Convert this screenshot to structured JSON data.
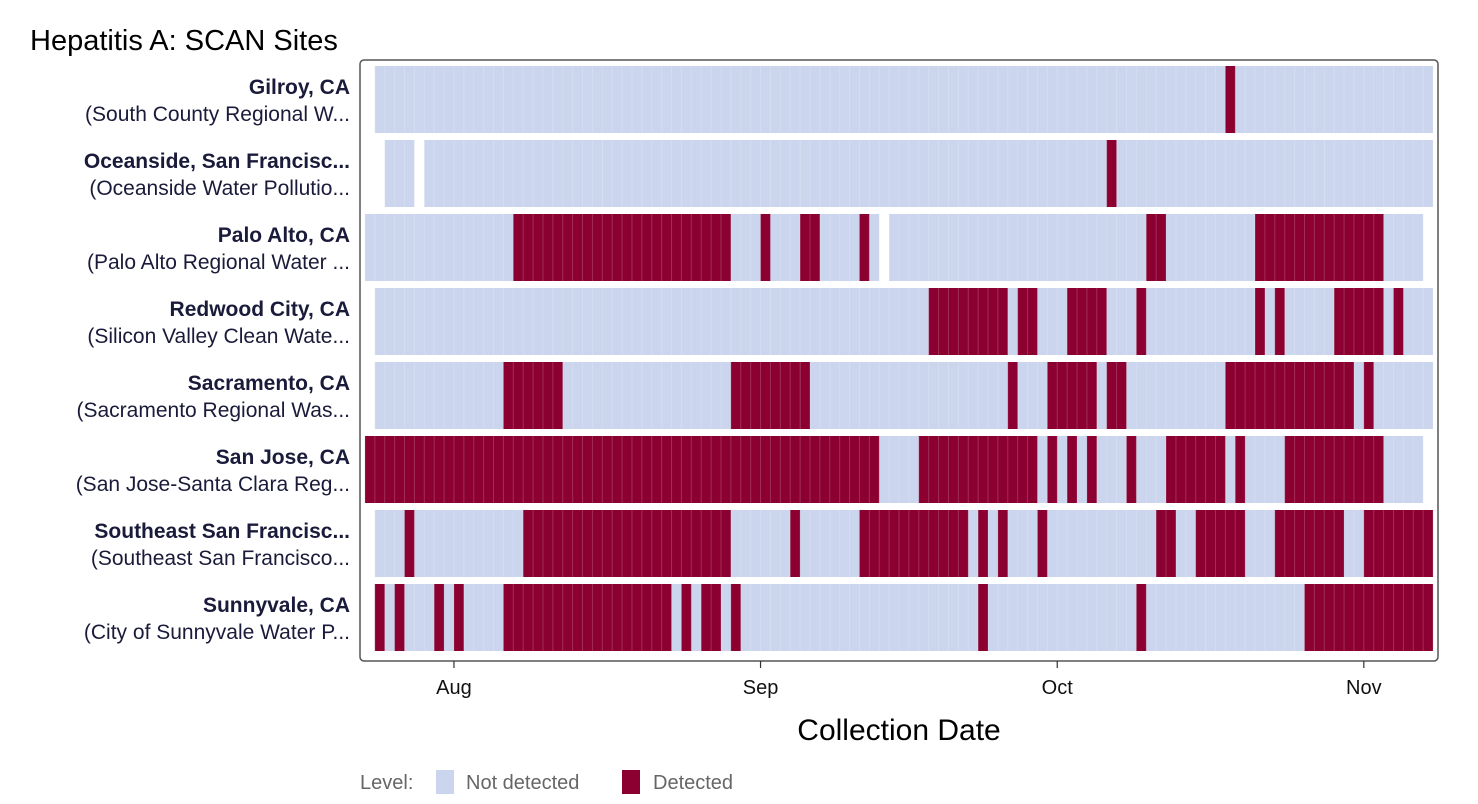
{
  "chart_data": {
    "type": "heatmap",
    "title": "Hepatitis A: SCAN Sites",
    "xlabel": "Collection Date",
    "ylabel": "",
    "x_range": [
      "2024-07-23",
      "2024-11-05"
    ],
    "x_ticks": [
      {
        "date": "2024-08-01",
        "label": "Aug"
      },
      {
        "date": "2024-09-01",
        "label": "Sep"
      },
      {
        "date": "2024-10-01",
        "label": "Oct"
      },
      {
        "date": "2024-11-01",
        "label": "Nov"
      }
    ],
    "levels": [
      "Not detected",
      "Detected"
    ],
    "colors": {
      "Not detected": "#cbd5ee",
      "Detected": "#8b0030",
      "frame": "#555555"
    },
    "legend": {
      "title": "Level:",
      "placement": "bottom"
    },
    "sites": [
      {
        "name": "Gilroy, CA",
        "plant": "(South County Regional W...",
        "sampled": [
          [
            "2024-07-24",
            "2024-11-07"
          ]
        ],
        "detected": [
          "2024-10-18"
        ]
      },
      {
        "name": "Oceanside, San Francisc...",
        "plant": "(Oceanside Water Pollutio...",
        "sampled": [
          [
            "2024-07-25",
            "2024-07-27"
          ],
          [
            "2024-07-29",
            "2024-08-15"
          ],
          [
            "2024-08-16",
            "2024-09-04"
          ],
          [
            "2024-09-05",
            "2024-10-27"
          ],
          [
            "2024-10-28",
            "2024-11-07"
          ]
        ],
        "detected": [
          "2024-10-06"
        ]
      },
      {
        "name": "Palo Alto, CA",
        "plant": "(Palo Alto Regional Water ...",
        "sampled": [
          [
            "2024-07-23",
            "2024-09-12"
          ],
          [
            "2024-09-14",
            "2024-11-06"
          ]
        ],
        "detected": [
          [
            "2024-08-07",
            "2024-08-27"
          ],
          "2024-08-28",
          "2024-09-01",
          [
            "2024-09-05",
            "2024-09-06"
          ],
          "2024-09-11",
          [
            "2024-10-10",
            "2024-10-11"
          ],
          [
            "2024-10-21",
            "2024-11-02"
          ]
        ]
      },
      {
        "name": "Redwood City, CA",
        "plant": "(Silicon Valley Clean Wate...",
        "sampled": [
          [
            "2024-07-24",
            "2024-11-07"
          ]
        ],
        "detected": [
          [
            "2024-09-18",
            "2024-09-25"
          ],
          [
            "2024-09-27",
            "2024-09-28"
          ],
          [
            "2024-10-02",
            "2024-10-05"
          ],
          "2024-10-09",
          "2024-10-21",
          "2024-10-23",
          [
            "2024-10-29",
            "2024-11-02"
          ],
          "2024-11-04"
        ]
      },
      {
        "name": "Sacramento, CA",
        "plant": "(Sacramento Regional Was...",
        "sampled": [
          [
            "2024-07-24",
            "2024-11-07"
          ]
        ],
        "detected": [
          [
            "2024-08-06",
            "2024-08-11"
          ],
          [
            "2024-08-29",
            "2024-09-04"
          ],
          "2024-09-05",
          "2024-09-26",
          [
            "2024-09-30",
            "2024-10-04"
          ],
          [
            "2024-10-06",
            "2024-10-07"
          ],
          [
            "2024-10-18",
            "2024-10-30"
          ],
          "2024-11-01"
        ]
      },
      {
        "name": "San Jose, CA",
        "plant": "(San Jose-Santa Clara Reg...",
        "sampled": [
          [
            "2024-07-23",
            "2024-11-06"
          ]
        ],
        "detected": [
          [
            "2024-07-23",
            "2024-09-12"
          ],
          [
            "2024-09-17",
            "2024-09-28"
          ],
          "2024-09-30",
          "2024-10-02",
          "2024-10-04",
          "2024-10-08",
          [
            "2024-10-12",
            "2024-10-17"
          ],
          "2024-10-19",
          [
            "2024-10-24",
            "2024-11-02"
          ]
        ]
      },
      {
        "name": "Southeast San Francisc...",
        "plant": "(Southeast San Francisco...",
        "sampled": [
          [
            "2024-07-24",
            "2024-11-07"
          ]
        ],
        "detected": [
          "2024-07-27",
          [
            "2024-08-08",
            "2024-08-28"
          ],
          "2024-09-04",
          [
            "2024-09-11",
            "2024-09-21"
          ],
          "2024-09-23",
          "2024-09-25",
          "2024-09-29",
          [
            "2024-10-11",
            "2024-10-12"
          ],
          [
            "2024-10-15",
            "2024-10-19"
          ],
          [
            "2024-10-23",
            "2024-10-29"
          ],
          [
            "2024-11-01",
            "2024-11-07"
          ]
        ]
      },
      {
        "name": "Sunnyvale, CA",
        "plant": "(City of Sunnyvale Water P...",
        "sampled": [
          [
            "2024-07-24",
            "2024-11-07"
          ]
        ],
        "detected": [
          "2024-07-24",
          "2024-07-26",
          "2024-07-30",
          "2024-08-01",
          [
            "2024-08-06",
            "2024-08-22"
          ],
          "2024-08-24",
          [
            "2024-08-26",
            "2024-08-27"
          ],
          "2024-08-29",
          "2024-09-23",
          "2024-10-09",
          [
            "2024-10-26",
            "2024-11-07"
          ]
        ]
      }
    ]
  }
}
